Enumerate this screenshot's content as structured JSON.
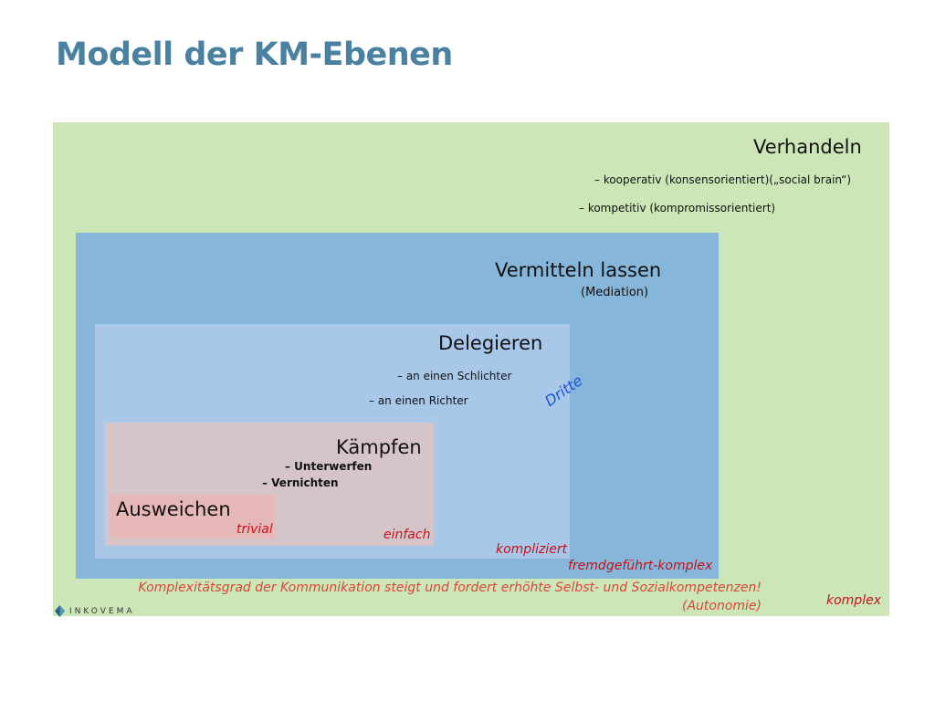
{
  "title": "Modell der KM-Ebenen",
  "colors": {
    "title": "#4a81a0",
    "outer_box": "#cde6b8",
    "mediation_box": "#86b6d9",
    "delegate_box": "#a9c8e9",
    "fight_box": "#d5c5c9",
    "avoid_box": "#e7b8b8",
    "complexity_label": "#c0141c",
    "third_label": "#1d4fe0"
  },
  "levels": {
    "verhandeln": {
      "heading": "Verhandeln",
      "items": [
        "– kooperativ (konsensorientiert)(„social brain“)",
        "– kompetitiv (kompromissorientiert)"
      ],
      "complexity": "komplex"
    },
    "vermitteln": {
      "heading": "Vermitteln lassen",
      "subtitle": "(Mediation)",
      "complexity": "fremdgeführt-komplex"
    },
    "delegieren": {
      "heading": "Delegieren",
      "items": [
        "– an einen Schlichter",
        "– an einen Richter"
      ],
      "complexity": "kompliziert"
    },
    "kaempfen": {
      "heading": "Kämpfen",
      "items": [
        "– Unterwerfen",
        "– Vernichten"
      ],
      "complexity": "einfach"
    },
    "ausweichen": {
      "heading": "Ausweichen",
      "complexity": "trivial"
    }
  },
  "third_label": "Dritte",
  "footnote": {
    "line1": "Komplexitätsgrad der Kommunikation steigt und fordert erhöhte Selbst- und Sozialkompetenzen!",
    "line2": "(Autonomie)"
  },
  "logo": {
    "icon": "inkovema-leaf-icon",
    "text": "INKOVEMA"
  }
}
